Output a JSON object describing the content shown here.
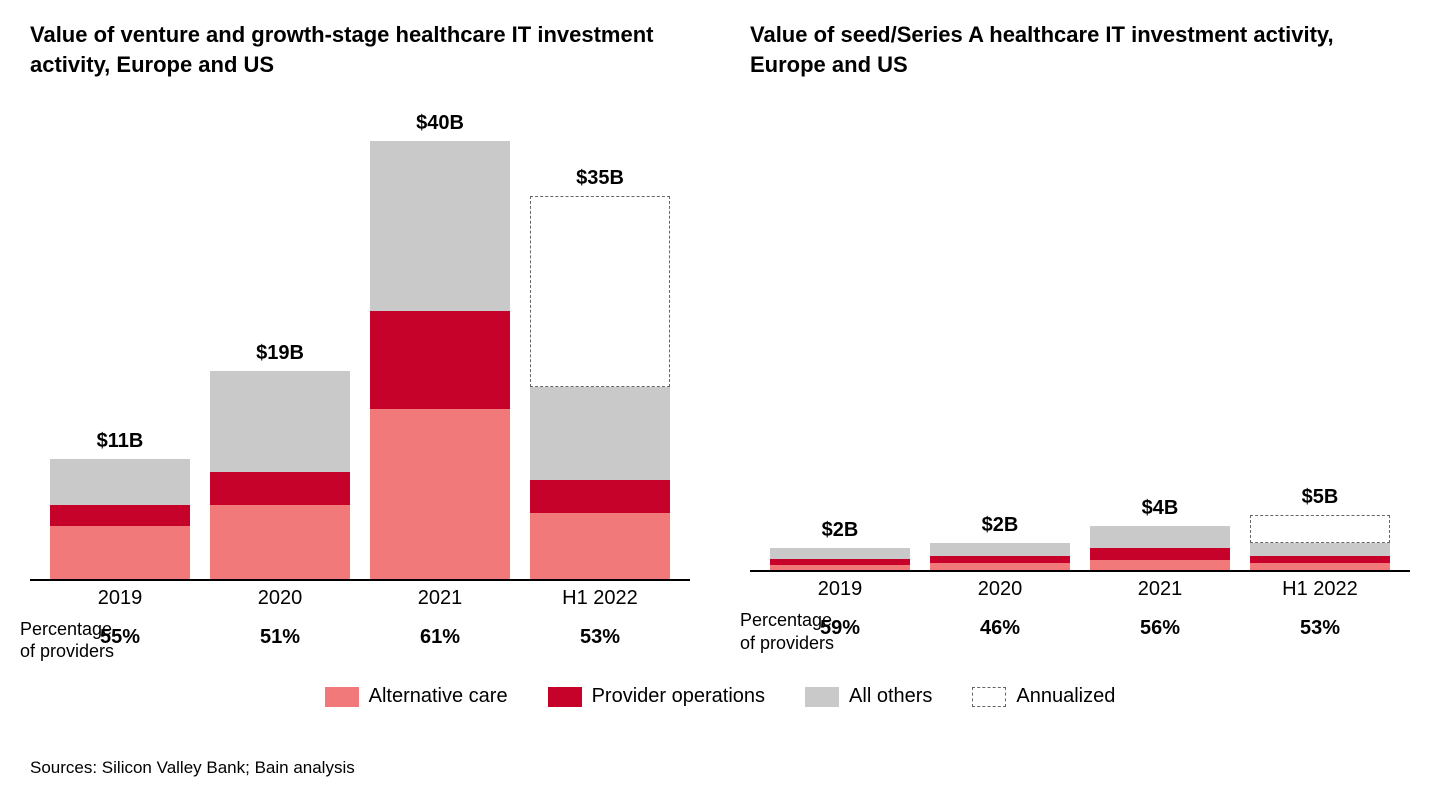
{
  "global_ymax": 40,
  "colors": {
    "alternative_care": "#f1797a",
    "provider_operations": "#c6012a",
    "all_others": "#c9c9c9",
    "annualized_border": "#666666",
    "axis": "#000000",
    "background": "#ffffff"
  },
  "legend": {
    "items": [
      {
        "label": "Alternative care",
        "key": "alternative_care"
      },
      {
        "label": "Provider operations",
        "key": "provider_operations"
      },
      {
        "label": "All others",
        "key": "all_others"
      },
      {
        "label": "Annualized",
        "key": "annualized"
      }
    ]
  },
  "left_chart": {
    "title": "Value of venture and growth-stage healthcare IT investment activity, Europe and US",
    "pct_label": "Percentage of providers",
    "bars": [
      {
        "label": "2019",
        "total_label": "$11B",
        "alt_care": 4.8,
        "provider_ops": 2.0,
        "all_others": 4.2,
        "annualized_extra": 0,
        "pct": "55%"
      },
      {
        "label": "2020",
        "total_label": "$19B",
        "alt_care": 6.8,
        "provider_ops": 3.0,
        "all_others": 9.2,
        "annualized_extra": 0,
        "pct": "51%"
      },
      {
        "label": "2021",
        "total_label": "$40B",
        "alt_care": 15.5,
        "provider_ops": 9.0,
        "all_others": 15.5,
        "annualized_extra": 0,
        "pct": "61%"
      },
      {
        "label": "H1 2022",
        "total_label": "$35B",
        "alt_care": 6.0,
        "provider_ops": 3.0,
        "all_others": 8.5,
        "annualized_extra": 17.5,
        "pct": "53%"
      }
    ]
  },
  "right_chart": {
    "title": "Value of seed/Series A healthcare IT investment activity, Europe and US",
    "pct_label": "Percentage of providers",
    "bars": [
      {
        "label": "2019",
        "total_label": "$2B",
        "alt_care": 0.5,
        "provider_ops": 0.5,
        "all_others": 1.0,
        "annualized_extra": 0,
        "pct": "59%"
      },
      {
        "label": "2020",
        "total_label": "$2B",
        "alt_care": 0.6,
        "provider_ops": 0.7,
        "all_others": 1.2,
        "annualized_extra": 0,
        "pct": "46%"
      },
      {
        "label": "2021",
        "total_label": "$4B",
        "alt_care": 0.9,
        "provider_ops": 1.1,
        "all_others": 2.0,
        "annualized_extra": 0,
        "pct": "56%"
      },
      {
        "label": "H1 2022",
        "total_label": "$5B",
        "alt_care": 0.6,
        "provider_ops": 0.7,
        "all_others": 1.2,
        "annualized_extra": 2.5,
        "pct": "53%"
      }
    ]
  },
  "sources": "Sources: Silicon Valley Bank; Bain analysis"
}
